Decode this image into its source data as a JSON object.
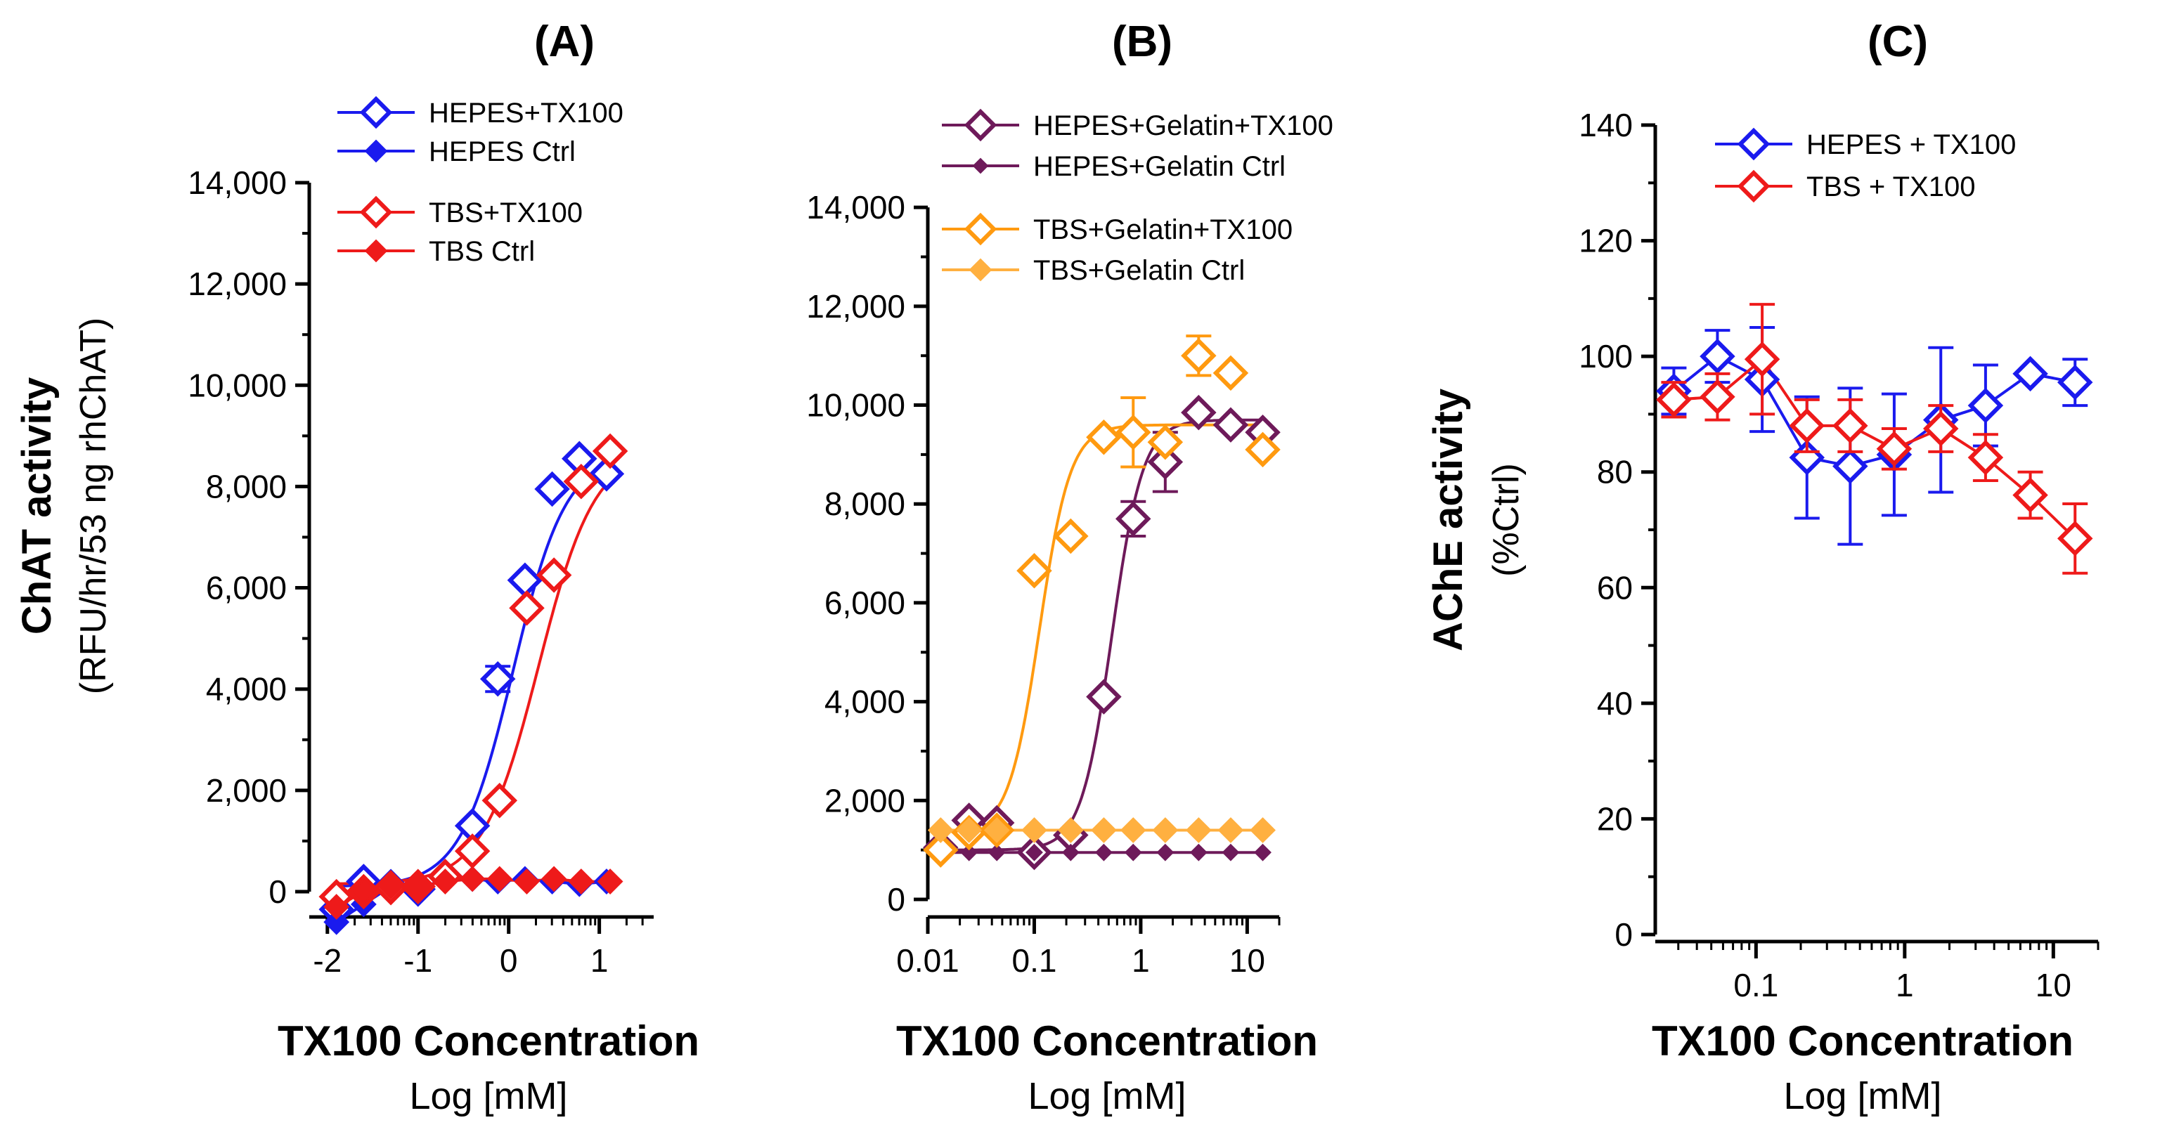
{
  "chart_data": [
    {
      "type": "scatter",
      "panel": "(A)",
      "xscale": "linear",
      "xlim": [
        -2.2,
        1.6
      ],
      "ylim": [
        -500,
        14000
      ],
      "xticks": [
        -2,
        -1,
        0,
        1
      ],
      "xtick_labels": [
        "-2",
        "-1",
        "0",
        "1"
      ],
      "yticks": [
        0,
        2000,
        4000,
        6000,
        8000,
        10000,
        12000,
        14000
      ],
      "ytick_labels": [
        "0",
        "2,000",
        "4,000",
        "6,000",
        "8,000",
        "10,000",
        "12,000",
        "14,000"
      ],
      "ylabel": "ChAT activity",
      "ylabel2": "(RFU/hr/53 ng rhChAT)",
      "xlabel": "TX100 Concentration",
      "xlabel2": "Log [mM]",
      "legend": "top-left",
      "series": [
        {
          "name": "HEPES+TX100",
          "color": "#1a1aee",
          "marker": "diamond-open",
          "x": [
            -1.9,
            -1.6,
            -1.3,
            -1.0,
            -0.7,
            -0.4,
            -0.12,
            0.18,
            0.48,
            0.78,
            1.08
          ],
          "y": [
            -350,
            200,
            100,
            50,
            300,
            1300,
            4200,
            6150,
            7950,
            8550,
            8250
          ],
          "err": [
            0,
            0,
            0,
            0,
            0,
            0,
            250,
            0,
            0,
            0,
            0
          ],
          "fit": {
            "bottom": 100,
            "top": 8650,
            "logec50": 0.05,
            "hill": 1.5
          }
        },
        {
          "name": "HEPES Ctrl",
          "color": "#1a1aee",
          "marker": "diamond-filled",
          "x": [
            -1.9,
            -1.6,
            -1.3,
            -1.0,
            -0.7,
            -0.4,
            -0.12,
            0.18,
            0.48,
            0.78,
            1.08
          ],
          "y": [
            -600,
            -250,
            100,
            50,
            250,
            250,
            200,
            250,
            200,
            150,
            200
          ]
        },
        {
          "name": "TBS+TX100",
          "color": "#ee1a1a",
          "marker": "diamond-open",
          "x": [
            -1.9,
            -1.6,
            -1.3,
            -1.0,
            -0.7,
            -0.4,
            -0.1,
            0.2,
            0.5,
            0.8,
            1.12
          ],
          "y": [
            -100,
            0,
            80,
            100,
            300,
            800,
            1800,
            5600,
            6250,
            8100,
            8700
          ],
          "err": [
            0,
            0,
            0,
            0,
            0,
            0,
            0,
            0,
            0,
            0,
            0
          ],
          "fit": {
            "bottom": 150,
            "top": 8750,
            "logec50": 0.33,
            "hill": 1.4
          }
        },
        {
          "name": "TBS Ctrl",
          "color": "#ee1a1a",
          "marker": "diamond-filled",
          "x": [
            -1.9,
            -1.6,
            -1.3,
            -1.0,
            -0.7,
            -0.4,
            -0.1,
            0.2,
            0.5,
            0.8,
            1.12
          ],
          "y": [
            -300,
            0,
            100,
            100,
            200,
            250,
            250,
            200,
            250,
            200,
            200
          ]
        }
      ]
    },
    {
      "type": "scatter",
      "panel": "(B)",
      "xscale": "log",
      "xlim": [
        0.01,
        20
      ],
      "ylim": [
        0,
        14500
      ],
      "xticks": [
        0.01,
        0.1,
        1,
        10
      ],
      "xtick_labels": [
        "0.01",
        "0.1",
        "1",
        "10"
      ],
      "yticks": [
        0,
        2000,
        4000,
        6000,
        8000,
        10000,
        12000,
        14000
      ],
      "ytick_labels": [
        "0",
        "2,000",
        "4,000",
        "6,000",
        "8,000",
        "10,000",
        "12,000",
        "14,000"
      ],
      "xlabel": "TX100 Concentration",
      "xlabel2": "Log [mM]",
      "legend": "top-left",
      "series": [
        {
          "name": "HEPES+Gelatin+TX100",
          "color": "#6e1a5a",
          "marker": "diamond-open",
          "x": [
            0.0132,
            0.0244,
            0.0445,
            0.1,
            0.22,
            0.45,
            0.85,
            1.7,
            3.5,
            7,
            14
          ],
          "y": [
            1050,
            1600,
            1550,
            950,
            1300,
            4100,
            7700,
            8850,
            9850,
            9600,
            9450
          ],
          "err": [
            0,
            0,
            0,
            0,
            0,
            0,
            350,
            600,
            0,
            0,
            0
          ],
          "fit": {
            "bottom": 1000,
            "top": 9700,
            "logec50": -0.27,
            "hill": 3.0
          }
        },
        {
          "name": "HEPES+Gelatin Ctrl",
          "color": "#6e1a5a",
          "marker": "diamond-small",
          "x": [
            0.0132,
            0.0244,
            0.0445,
            0.1,
            0.22,
            0.45,
            0.85,
            1.7,
            3.5,
            7,
            14
          ],
          "y": [
            950,
            950,
            950,
            950,
            950,
            950,
            950,
            950,
            950,
            950,
            950
          ]
        },
        {
          "name": "TBS+Gelatin+TX100",
          "color": "#ff9a10",
          "marker": "diamond-open",
          "x": [
            0.0132,
            0.0244,
            0.0445,
            0.1,
            0.22,
            0.45,
            0.85,
            1.7,
            3.5,
            7,
            14
          ],
          "y": [
            1000,
            1350,
            1400,
            6650,
            7350,
            9350,
            9450,
            9250,
            11000,
            10650,
            9100
          ],
          "err": [
            0,
            0,
            0,
            0,
            0,
            0,
            700,
            0,
            400,
            0,
            0
          ],
          "fit": {
            "bottom": 1350,
            "top": 9600,
            "logec50": -0.95,
            "hill": 3.0
          }
        },
        {
          "name": "TBS+Gelatin Ctrl",
          "color": "#ffb040",
          "marker": "diamond-filled",
          "x": [
            0.0132,
            0.0244,
            0.0445,
            0.1,
            0.22,
            0.45,
            0.85,
            1.7,
            3.5,
            7,
            14
          ],
          "y": [
            1400,
            1400,
            1400,
            1400,
            1400,
            1400,
            1400,
            1400,
            1400,
            1400,
            1400
          ]
        }
      ]
    },
    {
      "type": "line",
      "panel": "(C)",
      "xscale": "log",
      "xlim": [
        0.021,
        20
      ],
      "ylim": [
        0,
        140
      ],
      "xticks": [
        0.1,
        1,
        10
      ],
      "xtick_labels": [
        "0.1",
        "1",
        "10"
      ],
      "yticks": [
        0,
        20,
        40,
        60,
        80,
        100,
        120,
        140
      ],
      "ytick_labels": [
        "0",
        "20",
        "40",
        "60",
        "80",
        "100",
        "120",
        "140"
      ],
      "ylabel": "AChE activity",
      "ylabel2": "(%Ctrl)",
      "xlabel": "TX100 Concentration",
      "xlabel2": "Log [mM]",
      "legend": "top-right",
      "series": [
        {
          "name": "HEPES + TX100",
          "color": "#1a1aee",
          "marker": "diamond-open",
          "x": [
            0.028,
            0.055,
            0.11,
            0.22,
            0.43,
            0.85,
            1.75,
            3.5,
            7,
            14
          ],
          "y": [
            94,
            100,
            96,
            82.5,
            81,
            83,
            89,
            91.5,
            97,
            95.5
          ],
          "err": [
            4,
            4.5,
            9,
            10.5,
            13.5,
            10.5,
            12.5,
            7,
            0,
            4
          ]
        },
        {
          "name": "TBS + TX100",
          "color": "#ee1a1a",
          "marker": "diamond-open",
          "x": [
            0.028,
            0.055,
            0.11,
            0.22,
            0.43,
            0.85,
            1.75,
            3.5,
            7,
            14
          ],
          "y": [
            92.5,
            93,
            99.5,
            88,
            88,
            84,
            87.5,
            82.5,
            76,
            68.5
          ],
          "err": [
            3,
            4,
            9.5,
            4.5,
            4.5,
            3.5,
            4,
            4,
            4,
            6
          ]
        }
      ]
    }
  ]
}
